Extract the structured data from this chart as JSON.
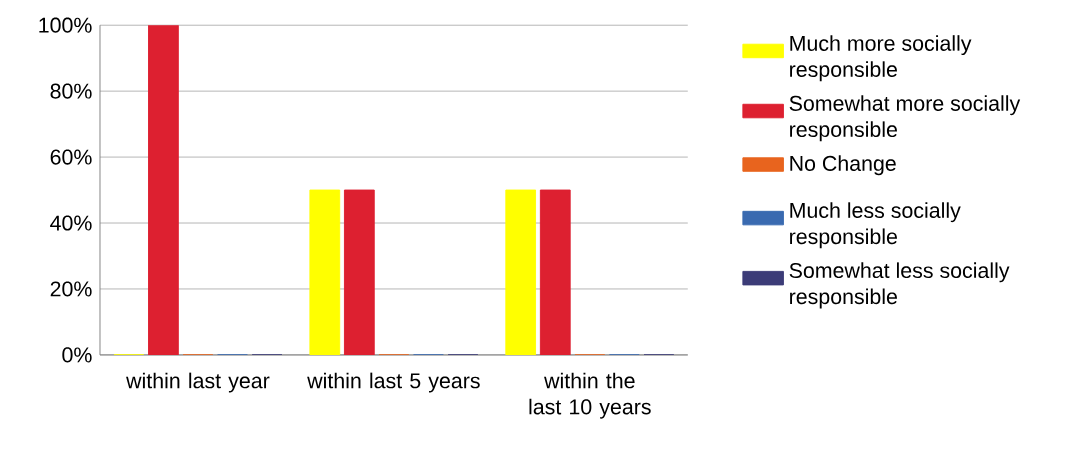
{
  "chart_data": {
    "type": "bar",
    "categories": [
      "within last year",
      "within last 5 years",
      "within the last 10 years"
    ],
    "series": [
      {
        "name": "Much more socially responsible",
        "color": "#ffff00",
        "values": [
          0,
          50,
          50
        ]
      },
      {
        "name": "Somewhat more socially responsible",
        "color": "#dd2030",
        "values": [
          100,
          50,
          50
        ]
      },
      {
        "name": "No Change",
        "color": "#e8641e",
        "values": [
          0,
          0,
          0
        ]
      },
      {
        "name": "Much less socially responsible",
        "color": "#3a6ab0",
        "values": [
          0,
          0,
          0
        ]
      },
      {
        "name": "Somewhat less socially responsible",
        "color": "#3c3c78",
        "values": [
          0,
          0,
          0
        ]
      }
    ],
    "ylim": [
      0,
      100
    ],
    "yticks": [
      {
        "value": 0,
        "label": "0%"
      },
      {
        "value": 20,
        "label": "20%"
      },
      {
        "value": 40,
        "label": "40%"
      },
      {
        "value": 60,
        "label": "60%"
      },
      {
        "value": 80,
        "label": "80%"
      },
      {
        "value": 100,
        "label": "100%"
      }
    ],
    "grid": "y",
    "legend": "right"
  }
}
